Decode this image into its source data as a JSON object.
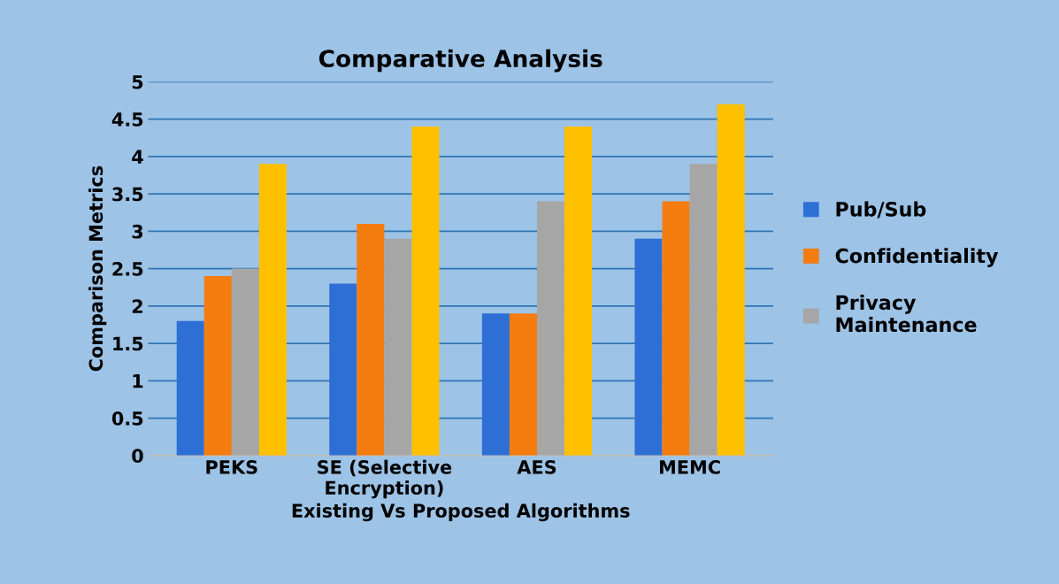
{
  "chart_data": {
    "type": "bar",
    "title": "Comparative Analysis",
    "xlabel": "Existing Vs Proposed Algorithms",
    "ylabel": "Comparison Metrics",
    "categories": [
      "PEKS",
      "SE (Selective\nEncryption)",
      "AES",
      "MEMC"
    ],
    "series": [
      {
        "name": "Pub/Sub",
        "color": "#2e6fd6",
        "values": [
          1.8,
          2.3,
          1.9,
          2.9
        ]
      },
      {
        "name": "Confidentiality",
        "color": "#f57c0f",
        "values": [
          2.4,
          3.1,
          1.9,
          3.4
        ]
      },
      {
        "name": "Privacy\nMaintenance",
        "color": "#a6a6a6",
        "values": [
          2.5,
          2.9,
          3.4,
          3.9
        ]
      },
      {
        "color": "#ffc000",
        "values": [
          3.9,
          4.4,
          4.4,
          4.7
        ]
      }
    ],
    "ylim": [
      0,
      5
    ],
    "yticks": [
      0,
      0.5,
      1,
      1.5,
      2,
      2.5,
      3,
      3.5,
      4,
      4.5,
      5
    ],
    "grid": "y",
    "legend": "right"
  }
}
